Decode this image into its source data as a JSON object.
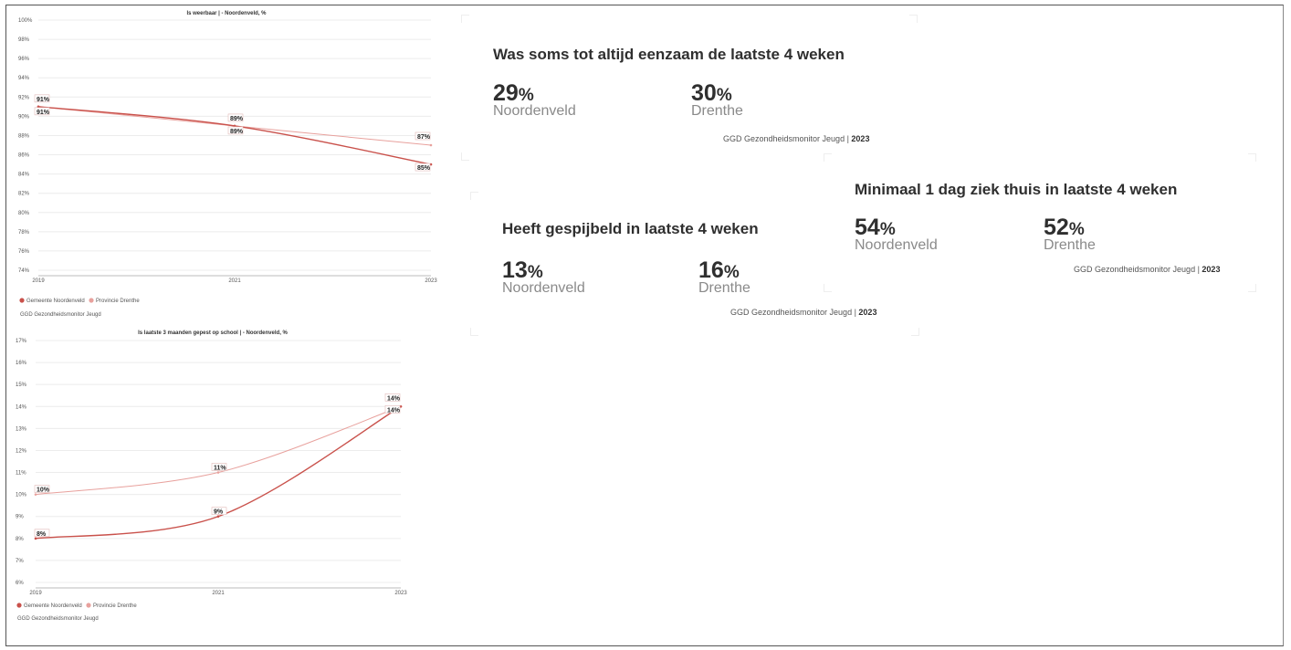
{
  "colors": {
    "gemeente": "#c9514b",
    "provincie": "#e8a19d"
  },
  "chart_data": [
    {
      "type": "line",
      "title": "Is weerbaar | - Noordenveld, %",
      "x": [
        "2019",
        "2021",
        "2023"
      ],
      "yticks": [
        "100%",
        "98%",
        "96%",
        "94%",
        "92%",
        "90%",
        "88%",
        "86%",
        "84%",
        "82%",
        "80%",
        "78%",
        "76%",
        "74%"
      ],
      "ylim": [
        74,
        100
      ],
      "series": [
        {
          "name": "Gemeente Noordenveld",
          "values": [
            91,
            89,
            85
          ],
          "labels": [
            "91%",
            "89%",
            "85%"
          ]
        },
        {
          "name": "Provincie Drenthe",
          "values": [
            91,
            89,
            87
          ],
          "labels": [
            "91%",
            "89%",
            "87%"
          ]
        }
      ],
      "legend": "bottom-left",
      "source": "GGD Gezondheidsmonitor Jeugd"
    },
    {
      "type": "line",
      "title": "Is laatste 3 maanden gepest op school | - Noordenveld, %",
      "x": [
        "2019",
        "2021",
        "2023"
      ],
      "yticks": [
        "17%",
        "16%",
        "15%",
        "14%",
        "13%",
        "12%",
        "11%",
        "10%",
        "9%",
        "8%",
        "7%",
        "6%"
      ],
      "ylim": [
        6,
        17
      ],
      "series": [
        {
          "name": "Gemeente Noordenveld",
          "values": [
            8,
            9,
            14
          ],
          "labels": [
            "8%",
            "9%",
            "14%"
          ]
        },
        {
          "name": "Provincie Drenthe",
          "values": [
            10,
            11,
            14
          ],
          "labels": [
            "10%",
            "11%",
            "14%"
          ]
        }
      ],
      "legend": "bottom-left",
      "source": "GGD Gezondheidsmonitor Jeugd"
    }
  ],
  "cards": {
    "eenzaam": {
      "title": "Was soms tot altijd eenzaam de laatste 4 weken",
      "left_value": "29",
      "left_label": "Noordenveld",
      "right_value": "30",
      "right_label": "Drenthe",
      "pct": "%",
      "source": "GGD Gezondheidsmonitor Jeugd",
      "year": "2023"
    },
    "ziek": {
      "title": "Minimaal 1 dag ziek thuis in laatste 4 weken",
      "left_value": "54",
      "left_label": "Noordenveld",
      "right_value": "52",
      "right_label": "Drenthe",
      "pct": "%",
      "source": "GGD Gezondheidsmonitor Jeugd",
      "year": "2023"
    },
    "spijbel": {
      "title": "Heeft gespijbeld in laatste 4 weken",
      "left_value": "13",
      "left_label": "Noordenveld",
      "right_value": "16",
      "right_label": "Drenthe",
      "pct": "%",
      "source": "GGD Gezondheidsmonitor Jeugd",
      "year": "2023"
    }
  }
}
